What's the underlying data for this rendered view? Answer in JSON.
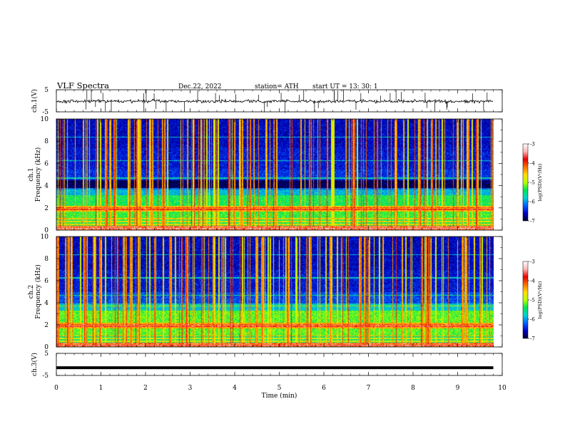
{
  "header": {
    "title": "VLF  Spectra",
    "date": "Dec.22, 2022",
    "station": "station= ATH",
    "start": "start  UT  =   13: 30: 1"
  },
  "chart_data": [
    {
      "type": "line",
      "panel": "ch1-waveform",
      "ylabel": "ch.1(V)",
      "ylim": [
        -5,
        5
      ],
      "yticks": [
        "5",
        "-5"
      ],
      "baseline": -0.2,
      "line_color": "#000000"
    },
    {
      "type": "heatmap",
      "panel": "ch1-spectrogram",
      "ylabel": "ch.1\nFrequency (kHz)",
      "ylim": [
        0,
        10
      ],
      "yticks": [
        "0",
        "2",
        "4",
        "6",
        "8",
        "10"
      ],
      "data_xlim": [
        0,
        9.8
      ],
      "bands": [
        {
          "from": 0.0,
          "to": 0.4,
          "level": -4.2
        },
        {
          "from": 0.4,
          "to": 1.0,
          "level": -5.4
        },
        {
          "from": 1.0,
          "to": 1.7,
          "level": -5.3
        },
        {
          "from": 1.7,
          "to": 2.2,
          "level": -4.5
        },
        {
          "from": 2.2,
          "to": 3.2,
          "level": -5.4
        },
        {
          "from": 3.2,
          "to": 3.7,
          "level": -5.9
        },
        {
          "from": 3.7,
          "to": 4.5,
          "level": -6.9
        },
        {
          "from": 4.5,
          "to": 5.5,
          "level": -6.4
        },
        {
          "from": 5.5,
          "to": 7.5,
          "level": -6.5
        },
        {
          "from": 7.5,
          "to": 10.0,
          "level": -6.6
        }
      ],
      "colorbar": {
        "label": "log(PSD)(V²/Hz)",
        "range": [
          -7,
          -3
        ],
        "ticks": [
          "-3",
          "-4",
          "-5",
          "-6",
          "-7"
        ],
        "colors": [
          "#000033",
          "#0000c8",
          "#0064ff",
          "#00d2d2",
          "#00e650",
          "#b4ff00",
          "#ffdc00",
          "#ff6e00",
          "#e60000",
          "#ffb4b4",
          "#ffffff"
        ]
      }
    },
    {
      "type": "heatmap",
      "panel": "ch2-spectrogram",
      "ylabel": "ch.2\nFrequency (kHz)",
      "ylim": [
        0,
        10
      ],
      "yticks": [
        "0",
        "2",
        "4",
        "6",
        "8",
        "10"
      ],
      "data_xlim": [
        0,
        9.8
      ],
      "bands": [
        {
          "from": 0.0,
          "to": 0.4,
          "level": -4.3
        },
        {
          "from": 0.4,
          "to": 1.0,
          "level": -5.5
        },
        {
          "from": 1.0,
          "to": 1.7,
          "level": -5.2
        },
        {
          "from": 1.7,
          "to": 2.2,
          "level": -4.4
        },
        {
          "from": 2.2,
          "to": 3.3,
          "level": -5.2
        },
        {
          "from": 3.3,
          "to": 4.0,
          "level": -5.8
        },
        {
          "from": 4.0,
          "to": 5.0,
          "level": -6.3
        },
        {
          "from": 5.0,
          "to": 7.0,
          "level": -6.5
        },
        {
          "from": 7.0,
          "to": 10.0,
          "level": -6.6
        }
      ],
      "colorbar": {
        "label": "log(PSD)(V²/Hz)",
        "range": [
          -7,
          -3
        ],
        "ticks": [
          "-3",
          "-4",
          "-5",
          "-6",
          "-7"
        ],
        "colors": [
          "#000033",
          "#0000c8",
          "#0064ff",
          "#00d2d2",
          "#00e650",
          "#b4ff00",
          "#ffdc00",
          "#ff6e00",
          "#e60000",
          "#ffb4b4",
          "#ffffff"
        ]
      }
    },
    {
      "type": "line",
      "panel": "ch3-waveform",
      "ylabel": "ch.3(V)",
      "ylim": [
        -5,
        5
      ],
      "yticks": [
        "5",
        "-5"
      ],
      "baseline": -1.5,
      "line_color": "#000000"
    }
  ],
  "xaxis": {
    "label": "Time (min)",
    "range": [
      0,
      10
    ],
    "ticks": [
      "0",
      "1",
      "2",
      "3",
      "4",
      "5",
      "6",
      "7",
      "8",
      "9",
      "10"
    ]
  }
}
